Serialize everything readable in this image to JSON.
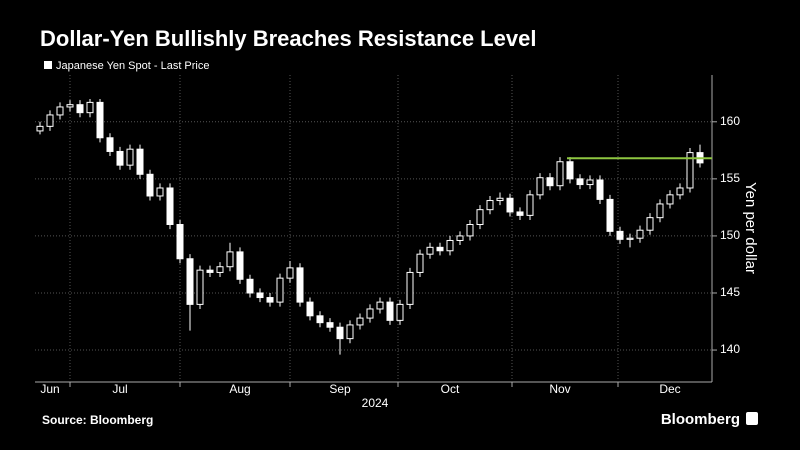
{
  "chart_data": {
    "type": "candlestick",
    "title": "Dollar-Yen Bullishly Breaches Resistance Level",
    "source": "Source: Bloomberg",
    "brand": "Bloomberg",
    "x_axis_label": "2024",
    "y_axis_label": "Yen per dollar",
    "categories": [
      null,
      "Jun",
      null,
      null,
      null,
      null,
      null,
      null,
      "Jul",
      null,
      null,
      null,
      null,
      null,
      null,
      null,
      null,
      null,
      null,
      null,
      "Aug",
      null,
      null,
      null,
      null,
      null,
      null,
      null,
      null,
      null,
      "Sep",
      null,
      null,
      null,
      null,
      null,
      null,
      null,
      null,
      null,
      null,
      "Oct",
      null,
      null,
      null,
      null,
      null,
      null,
      null,
      null,
      null,
      null,
      "Nov",
      null,
      null,
      null,
      null,
      null,
      null,
      null,
      null,
      null,
      null,
      "Dec",
      null,
      null,
      null
    ],
    "series": [
      {
        "name": "Japanese Yen Spot - Last Price",
        "color": "#ffffff",
        "open": [
          159.2,
          159.6,
          160.6,
          161.3,
          161.5,
          160.8,
          161.7,
          158.6,
          157.4,
          156.2,
          157.6,
          155.4,
          153.5,
          154.2,
          151.0,
          148.0,
          144.0,
          147.0,
          146.8,
          147.3,
          148.6,
          146.2,
          145.0,
          144.6,
          144.2,
          146.3,
          147.2,
          144.2,
          143.0,
          142.4,
          142.0,
          141.0,
          142.2,
          142.8,
          143.6,
          144.2,
          142.6,
          144.0,
          146.8,
          148.4,
          149.0,
          148.7,
          149.6,
          150.0,
          151.0,
          152.3,
          153.1,
          153.3,
          152.1,
          151.8,
          153.6,
          155.1,
          154.4,
          156.5,
          155.0,
          154.5,
          154.9,
          153.2,
          150.4,
          149.7,
          149.8,
          150.5,
          151.6,
          152.8,
          153.6,
          154.2,
          157.3
        ],
        "high": [
          160.0,
          161.0,
          161.7,
          161.9,
          161.9,
          162.0,
          162.0,
          159.0,
          157.8,
          158.0,
          158.0,
          155.8,
          154.6,
          154.6,
          151.4,
          148.4,
          147.4,
          147.4,
          147.7,
          149.4,
          149.0,
          146.6,
          145.4,
          145.0,
          146.7,
          147.8,
          147.6,
          144.6,
          143.4,
          142.8,
          142.4,
          142.6,
          143.2,
          144.0,
          144.6,
          144.6,
          144.4,
          147.2,
          148.8,
          149.4,
          149.4,
          150.0,
          150.4,
          151.4,
          152.7,
          153.5,
          153.8,
          153.7,
          152.5,
          154.0,
          155.5,
          155.5,
          156.9,
          156.9,
          155.4,
          155.3,
          155.3,
          153.6,
          150.8,
          150.2,
          150.9,
          152.0,
          153.2,
          154.0,
          154.6,
          157.7,
          158.0
        ],
        "low": [
          158.9,
          159.2,
          160.2,
          160.9,
          160.4,
          160.4,
          158.2,
          157.0,
          155.8,
          155.8,
          155.0,
          153.1,
          153.1,
          150.6,
          147.6,
          141.7,
          143.6,
          146.4,
          146.4,
          146.9,
          145.8,
          144.6,
          144.2,
          143.8,
          143.8,
          145.9,
          143.8,
          142.6,
          142.0,
          141.6,
          139.6,
          140.6,
          141.8,
          142.4,
          143.2,
          142.2,
          142.2,
          143.6,
          146.4,
          148.0,
          148.3,
          148.3,
          149.2,
          149.6,
          150.6,
          151.9,
          152.7,
          151.7,
          151.4,
          151.4,
          153.2,
          154.0,
          154.0,
          154.6,
          154.1,
          154.1,
          152.8,
          150.0,
          149.3,
          149.0,
          149.4,
          150.1,
          151.2,
          152.4,
          153.2,
          153.8,
          156.0
        ],
        "close": [
          159.6,
          160.6,
          161.3,
          161.5,
          160.8,
          161.7,
          158.6,
          157.4,
          156.2,
          157.6,
          155.4,
          153.5,
          154.2,
          151.0,
          148.0,
          144.0,
          147.0,
          146.8,
          147.3,
          148.6,
          146.2,
          145.0,
          144.6,
          144.2,
          146.3,
          147.2,
          144.2,
          143.0,
          142.4,
          142.0,
          141.0,
          142.2,
          142.8,
          143.6,
          144.2,
          142.6,
          144.0,
          146.8,
          148.4,
          149.0,
          148.7,
          149.6,
          150.0,
          151.0,
          152.3,
          153.1,
          153.3,
          152.1,
          151.8,
          153.6,
          155.1,
          154.4,
          156.5,
          155.0,
          154.5,
          154.9,
          153.2,
          150.4,
          149.7,
          149.8,
          150.5,
          151.6,
          152.8,
          153.6,
          154.2,
          157.3,
          156.4
        ]
      }
    ],
    "reference_line": {
      "value": 156.8,
      "color": "#8ec641"
    },
    "ylim": [
      137.2,
      164.1
    ],
    "yticks": [
      140,
      145,
      150,
      155,
      160
    ],
    "grid": true
  }
}
